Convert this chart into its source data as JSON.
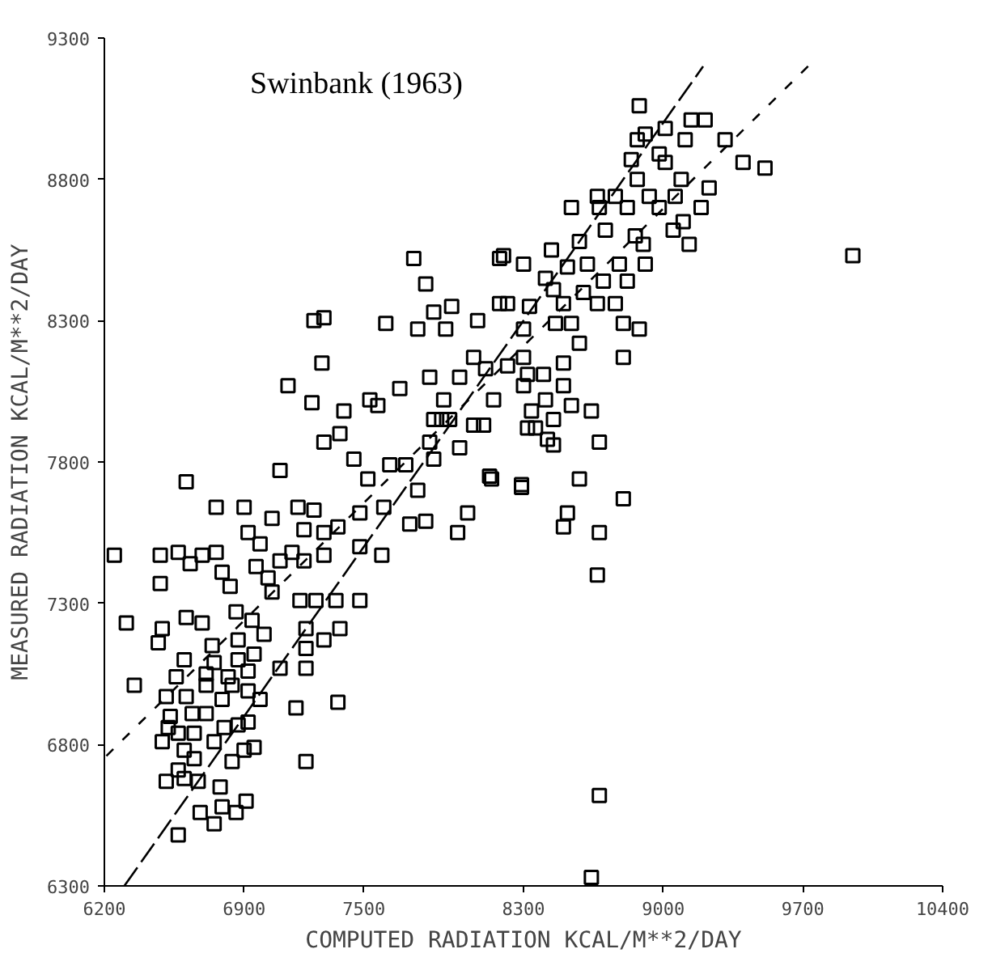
{
  "chart_data": {
    "type": "scatter",
    "xlabel": "COMPUTED RADIATION KCAL/M**2/DAY",
    "ylabel": "MEASURED RADIATION KCAL/M**2/DAY",
    "annotations": [
      "Swinbank (1963)"
    ],
    "xlim": [
      6200,
      10400
    ],
    "xticks": [
      6200,
      6900,
      7500,
      8300,
      9000,
      9700,
      10400
    ],
    "ylim": [
      6300,
      9300
    ],
    "yticks": [
      6300,
      6800,
      7300,
      7800,
      8300,
      8800,
      9300
    ],
    "grid": false,
    "series": [
      {
        "marker": "square",
        "color": "#000000",
        "x": [
          7750,
          7810,
          7940,
          7850,
          7910,
          7770,
          8070,
          7610,
          7250,
          7300,
          7290,
          7120,
          7240,
          7400,
          7300,
          7380,
          7450,
          7530,
          7570,
          7680,
          7830,
          7900,
          7980,
          8050,
          8110,
          7890,
          7850,
          7930,
          7830,
          7850,
          8050,
          8100,
          7980,
          7630,
          7710,
          7080,
          6610,
          7520,
          8130,
          8180,
          8180,
          8880,
          9010,
          9140,
          9210,
          9110,
          8870,
          8910,
          8980,
          9310,
          9400,
          9510,
          8840,
          9010,
          8870,
          9090,
          9230,
          8670,
          8760,
          8930,
          9060,
          8540,
          8680,
          8820,
          8980,
          9190,
          9100,
          9050,
          8710,
          8860,
          9130,
          8900,
          8580,
          8440,
          8200,
          8300,
          8620,
          8780,
          8910,
          9950,
          8410,
          8520,
          8700,
          8820,
          8450,
          8600,
          8670,
          8760,
          8220,
          8330,
          8500,
          8800,
          8880,
          8460,
          8540,
          8300,
          8580,
          8800,
          8500,
          8300,
          8220,
          8320,
          8400,
          8150,
          8300,
          8500,
          8410,
          8540,
          8640,
          8340,
          8450,
          8320,
          8360,
          8420,
          8450,
          8680,
          8140,
          8290,
          8580,
          6250,
          6760,
          6900,
          7040,
          7170,
          7250,
          6920,
          6980,
          7140,
          7200,
          7300,
          7370,
          7300,
          7080,
          7200,
          7480,
          7600,
          7770,
          7730,
          7810,
          7970,
          8020,
          7480,
          7590,
          6480,
          6570,
          6630,
          6690,
          6760,
          6790,
          6480,
          6830,
          6960,
          7020,
          7040,
          6860,
          6940,
          7180,
          7260,
          7360,
          7480,
          6310,
          6490,
          6610,
          6690,
          6470,
          6740,
          6870,
          7000,
          7210,
          7300,
          7380,
          7210,
          7210,
          6600,
          6750,
          6870,
          6950,
          7080,
          6560,
          6710,
          6820,
          6920,
          6350,
          6510,
          6610,
          6710,
          6790,
          6840,
          6920,
          6980,
          7160,
          7370,
          6530,
          6640,
          6710,
          6520,
          6800,
          6870,
          6920,
          6490,
          6570,
          6650,
          6750,
          6900,
          6950,
          6600,
          6650,
          6840,
          7210,
          6570,
          6510,
          6600,
          6670,
          6780,
          6910,
          6860,
          6790,
          6680,
          6750,
          6570,
          8290,
          8800,
          8520,
          8500,
          8680,
          8670,
          8680,
          8640
        ],
        "values": [
          8520,
          8430,
          8350,
          8330,
          8270,
          8270,
          8300,
          8290,
          8300,
          8310,
          8150,
          8070,
          8010,
          7980,
          7870,
          7900,
          7810,
          8020,
          8000,
          8060,
          8100,
          8020,
          8100,
          8170,
          8130,
          7950,
          7950,
          7950,
          7870,
          7810,
          7930,
          7930,
          7850,
          7790,
          7790,
          7770,
          7730,
          7740,
          7750,
          8520,
          8360,
          9060,
          8980,
          9010,
          9010,
          8940,
          8940,
          8960,
          8890,
          8940,
          8860,
          8840,
          8870,
          8860,
          8800,
          8800,
          8770,
          8740,
          8740,
          8740,
          8740,
          8700,
          8700,
          8700,
          8700,
          8700,
          8650,
          8620,
          8620,
          8600,
          8570,
          8570,
          8580,
          8550,
          8530,
          8500,
          8500,
          8500,
          8500,
          8530,
          8450,
          8490,
          8440,
          8440,
          8410,
          8400,
          8360,
          8360,
          8360,
          8350,
          8360,
          8290,
          8270,
          8290,
          8290,
          8270,
          8220,
          8170,
          8150,
          8170,
          8140,
          8110,
          8110,
          8020,
          8070,
          8070,
          8020,
          8000,
          7980,
          7980,
          7950,
          7920,
          7920,
          7880,
          7860,
          7870,
          7740,
          7720,
          7740,
          7470,
          7640,
          7640,
          7600,
          7640,
          7630,
          7550,
          7510,
          7480,
          7560,
          7550,
          7570,
          7470,
          7450,
          7450,
          7620,
          7640,
          7700,
          7580,
          7590,
          7550,
          7620,
          7500,
          7470,
          7470,
          7480,
          7440,
          7470,
          7480,
          7410,
          7370,
          7360,
          7430,
          7390,
          7340,
          7270,
          7240,
          7310,
          7310,
          7310,
          7310,
          7230,
          7210,
          7250,
          7230,
          7160,
          7150,
          7170,
          7190,
          7210,
          7170,
          7210,
          7140,
          7070,
          7100,
          7090,
          7100,
          7120,
          7070,
          7040,
          7050,
          7040,
          7060,
          7010,
          6970,
          6970,
          7010,
          6960,
          7010,
          6990,
          6960,
          6930,
          6950,
          6900,
          6910,
          6910,
          6860,
          6860,
          6870,
          6880,
          6810,
          6840,
          6840,
          6810,
          6780,
          6790,
          6780,
          6750,
          6740,
          6740,
          6710,
          6670,
          6680,
          6670,
          6650,
          6600,
          6560,
          6580,
          6560,
          6520,
          6480,
          7710,
          7670,
          7620,
          7570,
          7550,
          7400,
          6620,
          6330
        ]
      },
      {
        "type": "line",
        "marker": "none",
        "color": "#000000",
        "line_style": "dashed",
        "x": [
          6300,
          9200
        ],
        "values": [
          6300,
          9200
        ]
      },
      {
        "type": "line",
        "marker": "none",
        "color": "#000000",
        "line_style": "dotted",
        "x": [
          6210,
          9740
        ],
        "values": [
          6760,
          9210
        ]
      }
    ]
  }
}
